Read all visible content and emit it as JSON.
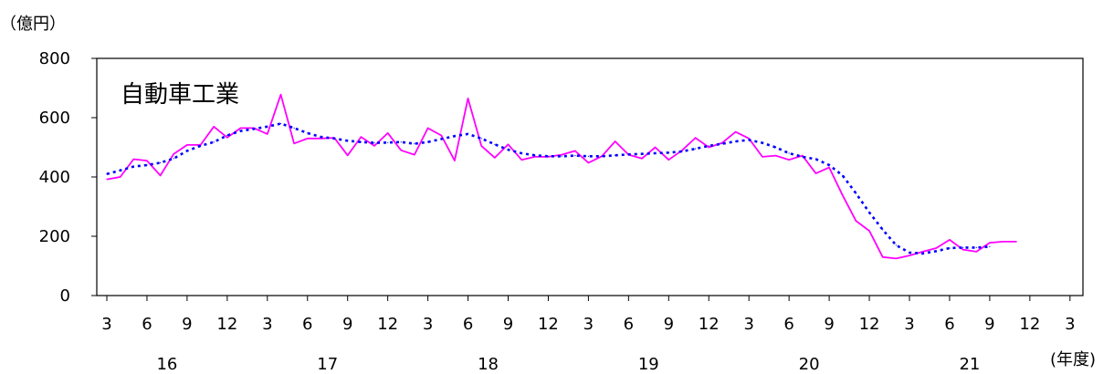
{
  "chart_data": {
    "type": "line",
    "title": "自動車工業",
    "ylabel": "（億円）",
    "xlabel": "(年度)",
    "ylim": [
      0,
      800
    ],
    "yticks": [
      "0",
      "200",
      "400",
      "600",
      "800"
    ],
    "month_ticks": [
      "3",
      "6",
      "9",
      "12",
      "3",
      "6",
      "9",
      "12",
      "3",
      "6",
      "9",
      "12",
      "3",
      "6",
      "9",
      "12",
      "3",
      "6",
      "9",
      "12",
      "3",
      "6",
      "9",
      "12",
      "3"
    ],
    "year_labels": [
      "16",
      "17",
      "18",
      "19",
      "20",
      "21"
    ],
    "grid": false,
    "series": [
      {
        "color": "#ff00ff",
        "style": "solid",
        "values": [
          392,
          400,
          460,
          455,
          405,
          478,
          508,
          508,
          570,
          533,
          565,
          565,
          545,
          678,
          513,
          530,
          530,
          532,
          473,
          535,
          505,
          548,
          490,
          475,
          565,
          540,
          455,
          665,
          505,
          465,
          510,
          458,
          468,
          468,
          475,
          488,
          448,
          470,
          520,
          475,
          462,
          500,
          458,
          490,
          532,
          500,
          515,
          552,
          530,
          468,
          472,
          458,
          472,
          412,
          432,
          338,
          252,
          218,
          130,
          125,
          135,
          148,
          160,
          188,
          155,
          148,
          178,
          182,
          182
        ],
        "start_month_index": 0
      },
      {
        "color": "#0000ff",
        "style": "dotted",
        "values": [
          410,
          422,
          435,
          440,
          448,
          462,
          488,
          505,
          518,
          540,
          555,
          562,
          570,
          580,
          565,
          548,
          535,
          530,
          522,
          518,
          515,
          516,
          518,
          512,
          518,
          528,
          538,
          545,
          530,
          510,
          492,
          480,
          473,
          470,
          470,
          472,
          470,
          470,
          473,
          476,
          478,
          480,
          482,
          486,
          495,
          505,
          512,
          520,
          525,
          515,
          500,
          480,
          468,
          460,
          440,
          405,
          345,
          280,
          222,
          170,
          145,
          142,
          150,
          160,
          162,
          162,
          165
        ],
        "start_month_index": 0
      }
    ]
  }
}
